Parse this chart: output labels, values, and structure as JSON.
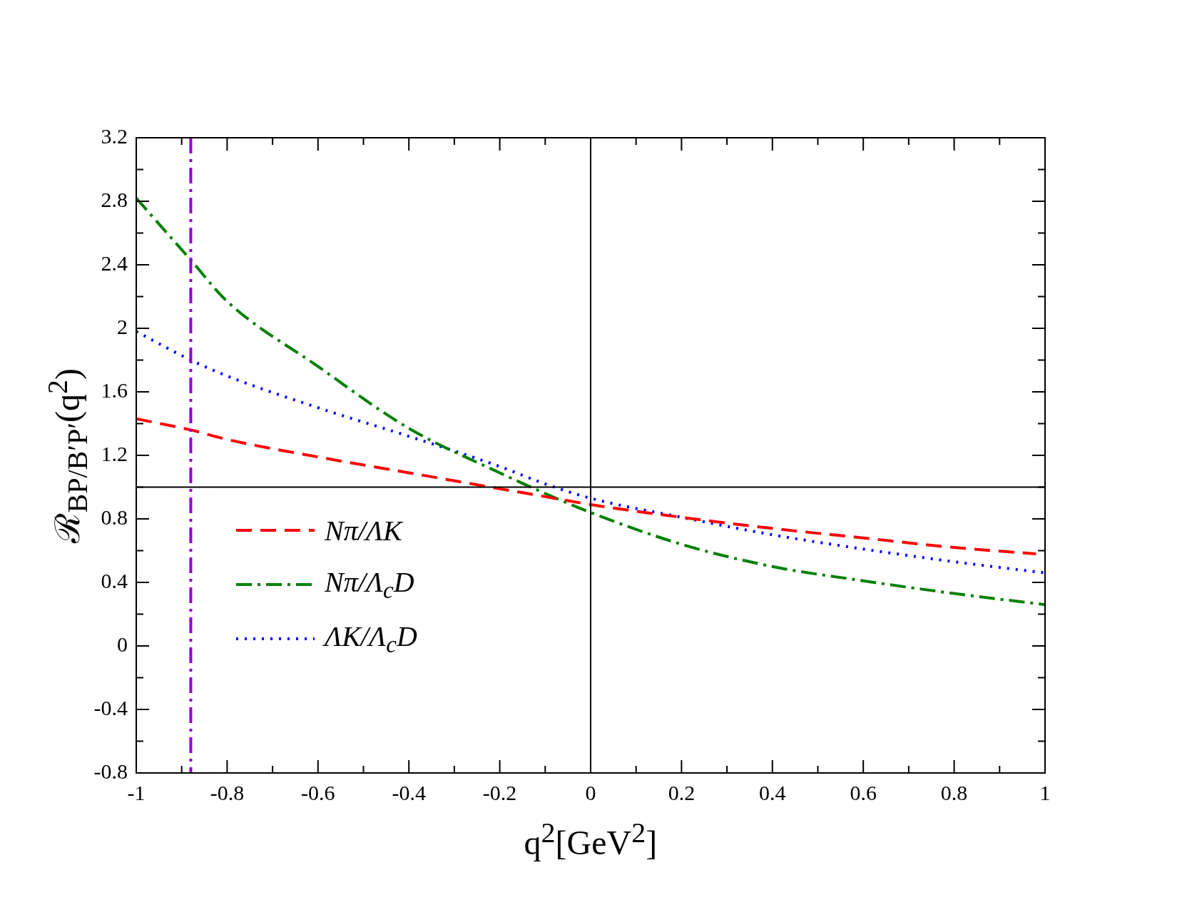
{
  "chart_data": {
    "type": "line",
    "xlabel": "q$^{2}$[GeV$^{2}$]",
    "ylabel": "ℛ$_{BP/B′P′}$(q$^{2}$)",
    "x": [
      -1,
      -0.88,
      -0.8,
      -0.6,
      -0.4,
      -0.2,
      -0.1,
      0,
      0.2,
      0.4,
      0.6,
      0.8,
      0.98
    ],
    "series": [
      {
        "name": "Nπ/ΛK",
        "color": "#ff0000",
        "line_style": "dashed",
        "values": [
          1.43,
          1.36,
          1.3,
          1.19,
          1.09,
          0.99,
          0.94,
          0.89,
          0.81,
          0.74,
          0.68,
          0.62,
          0.58
        ]
      },
      {
        "name": "Nπ/Λ$_{c}$D",
        "color": "#008000",
        "line_style": "dashdot",
        "x": [
          -1,
          -0.88,
          -0.8,
          -0.6,
          -0.4,
          -0.2,
          -0.1,
          0,
          0.2,
          0.4,
          0.6,
          0.8,
          1
        ],
        "values": [
          2.82,
          2.43,
          2.17,
          1.76,
          1.37,
          1.09,
          0.96,
          0.84,
          0.64,
          0.5,
          0.41,
          0.33,
          0.26
        ]
      },
      {
        "name": "ΛK/Λ$_{c}$D",
        "color": "#0000ff",
        "line_style": "dotted",
        "x": [
          -1,
          -0.88,
          -0.8,
          -0.6,
          -0.4,
          -0.2,
          -0.1,
          0,
          0.2,
          0.4,
          0.6,
          0.8,
          1
        ],
        "values": [
          1.98,
          1.8,
          1.7,
          1.5,
          1.32,
          1.13,
          1.02,
          0.93,
          0.81,
          0.7,
          0.61,
          0.53,
          0.46
        ]
      }
    ],
    "xlim": [
      -1,
      1
    ],
    "xticks": [
      -1,
      -0.8,
      -0.6,
      -0.4,
      -0.2,
      0,
      0.2,
      0.4,
      0.6,
      0.8,
      1
    ],
    "ylim": [
      -0.8,
      3.2
    ],
    "yticks": [
      -0.8,
      -0.4,
      0,
      0.4,
      0.8,
      1.2,
      1.6,
      2,
      2.4,
      2.8,
      3.2
    ],
    "ref_lines": [
      {
        "axis": "y",
        "value": 1,
        "color": "#000000",
        "line_style": "solid"
      },
      {
        "axis": "x",
        "value": 0,
        "color": "#000000",
        "line_style": "solid"
      },
      {
        "axis": "x",
        "value": -0.88,
        "color": "#9400d3",
        "line_style": "dashdot"
      }
    ],
    "grid": false,
    "legend": "bottom left"
  }
}
